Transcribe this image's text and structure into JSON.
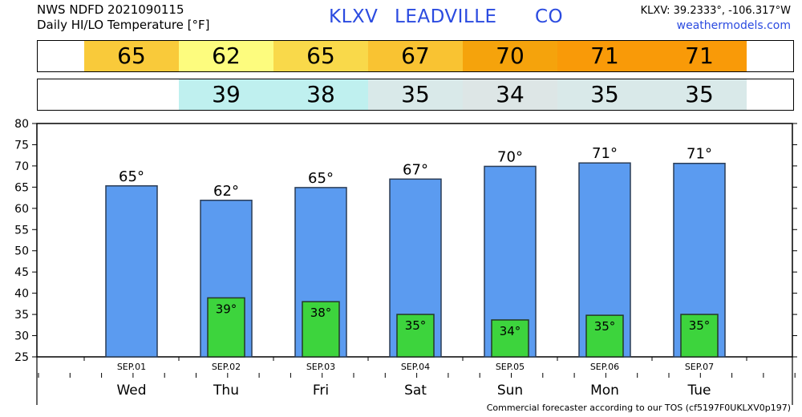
{
  "header": {
    "line1": "NWS NDFD 2021090115",
    "line2": "Daily HI/LO Temperature [°F]",
    "station_id": "KLXV",
    "station_name": "LEADVILLE",
    "state": "CO",
    "coords": "KLXV: 39.2333°, -106.317°W",
    "site": "weathermodels.com"
  },
  "hi_band": {
    "values": [
      "65",
      "62",
      "65",
      "67",
      "70",
      "71",
      "71"
    ],
    "colors": [
      "#f9ca3a",
      "#fdfc7e",
      "#f9d94a",
      "#f9c332",
      "#f5a30c",
      "#f99a08",
      "#f99a08"
    ]
  },
  "lo_band": {
    "values": [
      "",
      "39",
      "38",
      "35",
      "34",
      "35",
      "35"
    ],
    "colors": [
      "#ffffff",
      "#bff0ef",
      "#bff0ef",
      "#d9e9e9",
      "#dde6e6",
      "#d9e9e9",
      "#d9e9e9"
    ]
  },
  "footer": "Commercial forecaster according to our TOS (cf5197F0UKLXV0p197)",
  "chart_data": {
    "type": "bar",
    "categories": [
      "SEP.01",
      "SEP.02",
      "SEP.03",
      "SEP.04",
      "SEP.05",
      "SEP.06",
      "SEP.07"
    ],
    "days": [
      "Wed",
      "Thu",
      "Fri",
      "Sat",
      "Sun",
      "Mon",
      "Tue"
    ],
    "series": [
      {
        "name": "HI",
        "values": [
          65.3,
          61.9,
          64.9,
          66.9,
          69.9,
          70.7,
          70.6
        ],
        "labels": [
          "65°",
          "62°",
          "65°",
          "67°",
          "70°",
          "71°",
          "71°"
        ],
        "color": "#5b9bf0"
      },
      {
        "name": "LO",
        "values": [
          null,
          38.9,
          38.0,
          35.0,
          33.7,
          34.8,
          35.0
        ],
        "labels": [
          "",
          "39°",
          "38°",
          "35°",
          "34°",
          "35°",
          "35°"
        ],
        "color": "#3dd43d"
      }
    ],
    "ylim": [
      25,
      80
    ],
    "yticks": [
      "25",
      "30",
      "35",
      "40",
      "45",
      "50",
      "55",
      "60",
      "65",
      "70",
      "75",
      "80"
    ],
    "grid": false
  }
}
